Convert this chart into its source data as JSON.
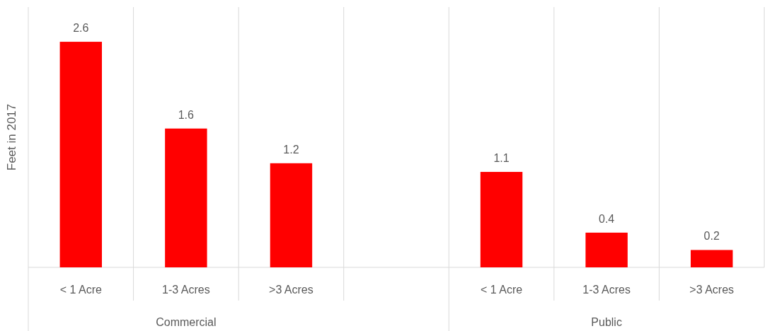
{
  "chart_data": {
    "type": "bar",
    "ylabel": "Feet in 2017",
    "categories": [
      "< 1 Acre",
      "1-3 Acres",
      ">3 Acres",
      null,
      "< 1 Acre",
      "1-3 Acres",
      ">3 Acres"
    ],
    "values": [
      2.6,
      1.6,
      1.2,
      null,
      1.1,
      0.4,
      0.2
    ],
    "color": "#ff0000",
    "ylim": [
      0,
      3
    ],
    "data_labels": true,
    "grid": "x",
    "annotations": [
      "Commercial",
      "Public"
    ]
  }
}
